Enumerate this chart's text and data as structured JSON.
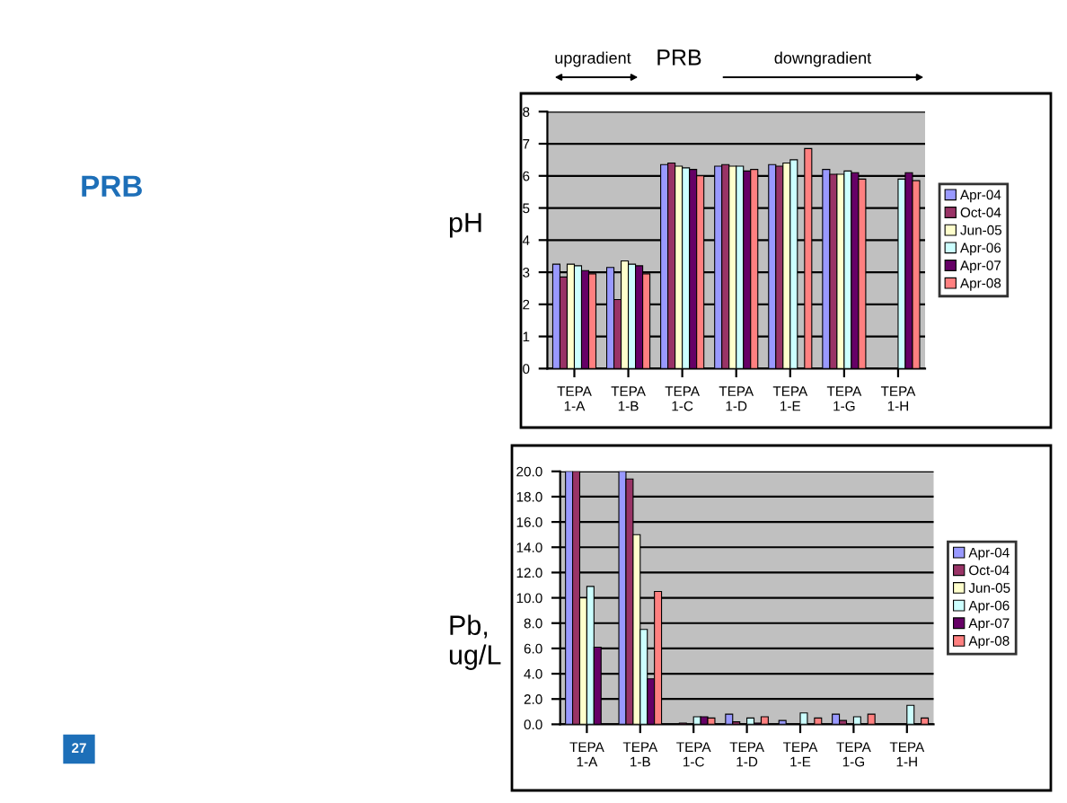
{
  "chart_data": [
    {
      "type": "bar",
      "ylabel": "pH",
      "annotations": [
        "upgradient",
        "PRB",
        "downgradient",
        "PRB"
      ],
      "categories": [
        "TEPA\n1-A",
        "TEPA\n1-B",
        "TEPA\n1-C",
        "TEPA\n1-D",
        "TEPA\n1-E",
        "TEPA\n1-G",
        "TEPA\n1-H"
      ],
      "series": [
        {
          "name": "Apr-04",
          "color": "#9999ff",
          "values": [
            3.25,
            3.15,
            6.35,
            6.3,
            6.35,
            6.2,
            null
          ]
        },
        {
          "name": "Oct-04",
          "color": "#993366",
          "values": [
            2.85,
            2.15,
            6.4,
            6.35,
            6.3,
            6.05,
            null
          ]
        },
        {
          "name": "Jun-05",
          "color": "#ffffcc",
          "values": [
            3.25,
            3.35,
            6.3,
            6.3,
            6.4,
            6.05,
            null
          ]
        },
        {
          "name": "Apr-06",
          "color": "#ccffff",
          "values": [
            3.2,
            3.25,
            6.25,
            6.3,
            6.5,
            6.15,
            5.9
          ]
        },
        {
          "name": "Apr-07",
          "color": "#660066",
          "values": [
            3.05,
            3.2,
            6.2,
            6.15,
            null,
            6.1,
            6.1
          ]
        },
        {
          "name": "Apr-08",
          "color": "#ff8080",
          "values": [
            2.95,
            2.95,
            6.0,
            6.2,
            6.85,
            5.9,
            5.85
          ]
        }
      ],
      "ylim": [
        0,
        8
      ],
      "yticks": [
        0,
        1,
        2,
        3,
        4,
        5,
        6,
        7,
        8
      ],
      "grid": "y",
      "legend": "right"
    },
    {
      "type": "bar",
      "ylabel": "Pb,\nug/L",
      "annotations": [
        "27"
      ],
      "categories": [
        "TEPA\n1-A",
        "TEPA\n1-B",
        "TEPA\n1-C",
        "TEPA\n1-D",
        "TEPA\n1-E",
        "TEPA\n1-G",
        "TEPA\n1-H"
      ],
      "series": [
        {
          "name": "Apr-04",
          "color": "#9999ff",
          "values": [
            20,
            20,
            null,
            0.8,
            0.3,
            0.8,
            null
          ]
        },
        {
          "name": "Oct-04",
          "color": "#993366",
          "values": [
            20,
            19.4,
            0.1,
            0.2,
            null,
            0.3,
            null
          ]
        },
        {
          "name": "Jun-05",
          "color": "#ffffcc",
          "values": [
            10,
            15,
            null,
            null,
            null,
            null,
            null
          ]
        },
        {
          "name": "Apr-06",
          "color": "#ccffff",
          "values": [
            10.9,
            7.5,
            0.6,
            0.5,
            0.9,
            0.6,
            1.5
          ]
        },
        {
          "name": "Apr-07",
          "color": "#660066",
          "values": [
            6.1,
            3.6,
            0.6,
            0.1,
            null,
            null,
            null
          ]
        },
        {
          "name": "Apr-08",
          "color": "#ff8080",
          "values": [
            null,
            10.5,
            0.5,
            0.6,
            0.5,
            0.8,
            0.5
          ]
        }
      ],
      "ylim": [
        0,
        20
      ],
      "yticks": [
        {
          "value": 0,
          "label": "0.0"
        },
        {
          "value": 2,
          "label": "2.0"
        },
        {
          "value": 4,
          "label": "4.0"
        },
        {
          "value": 6,
          "label": "6.0"
        },
        {
          "value": 8,
          "label": "8.0"
        },
        {
          "value": 10,
          "label": "10.0"
        },
        {
          "value": 12,
          "label": "12.0"
        },
        {
          "value": 14,
          "label": "14.0"
        },
        {
          "value": 16,
          "label": "16.0"
        },
        {
          "value": 18,
          "label": "18.0"
        },
        {
          "value": 20,
          "label": "20.0"
        }
      ],
      "grid": "y",
      "legend": "right"
    }
  ]
}
